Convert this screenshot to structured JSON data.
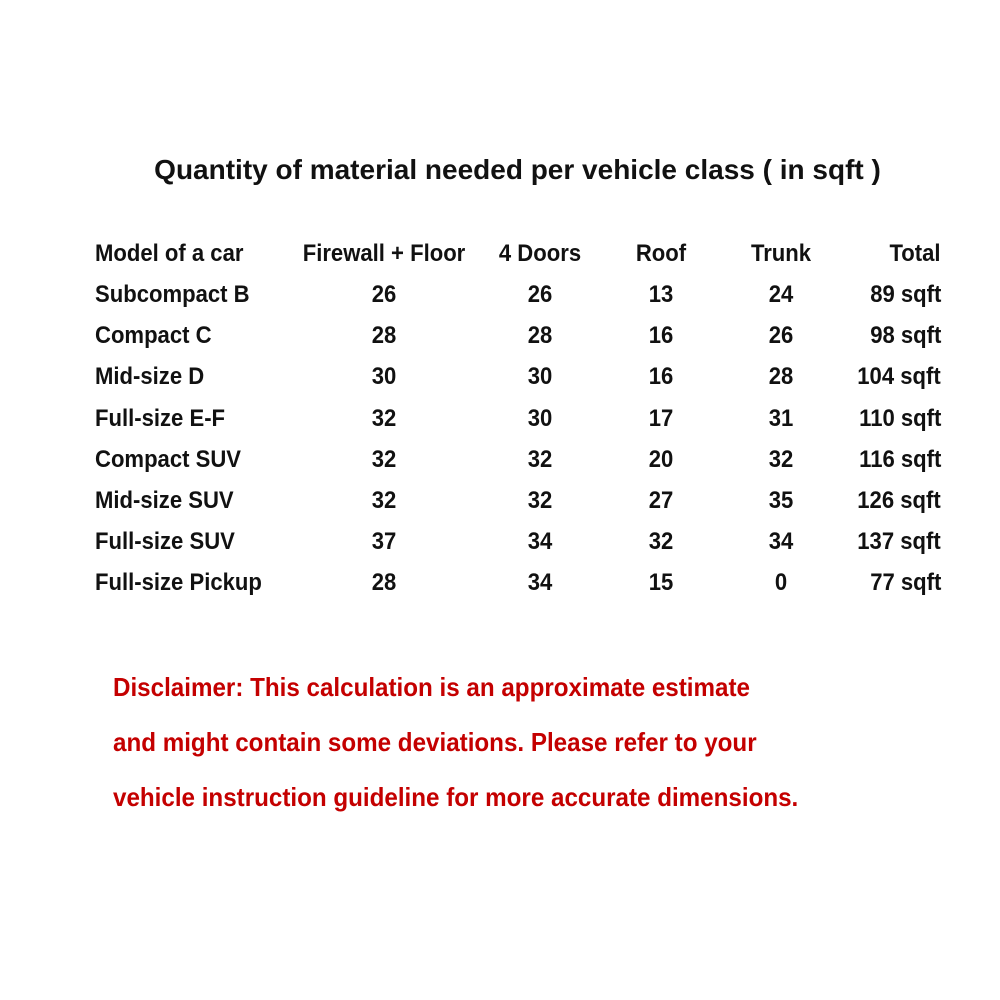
{
  "title": "Quantity of material needed per vehicle class ( in sqft )",
  "table": {
    "headers": [
      "Model of a car",
      "Firewall + Floor",
      "4 Doors",
      "Roof",
      "Trunk",
      "Total"
    ],
    "rows": [
      [
        "Subcompact B",
        "26",
        "26",
        "13",
        "24",
        "89 sqft"
      ],
      [
        "Compact C",
        "28",
        "28",
        "16",
        "26",
        "98 sqft"
      ],
      [
        "Mid-size D",
        "30",
        "30",
        "16",
        "28",
        "104 sqft"
      ],
      [
        "Full-size E-F",
        "32",
        "30",
        "17",
        "31",
        "110 sqft"
      ],
      [
        "Compact SUV",
        "32",
        "32",
        "20",
        "32",
        "116 sqft"
      ],
      [
        "Mid-size SUV",
        "32",
        "32",
        "27",
        "35",
        "126 sqft"
      ],
      [
        "Full-size SUV",
        "37",
        "34",
        "32",
        "34",
        "137 sqft"
      ],
      [
        "Full-size Pickup",
        "28",
        "34",
        "15",
        "0",
        "77 sqft"
      ]
    ]
  },
  "disclaimer": {
    "lines": [
      "Disclaimer: This calculation is an approximate estimate",
      "and might contain some deviations. Please refer to your",
      "vehicle instruction guideline for more accurate dimensions."
    ],
    "color": "#c40000"
  }
}
